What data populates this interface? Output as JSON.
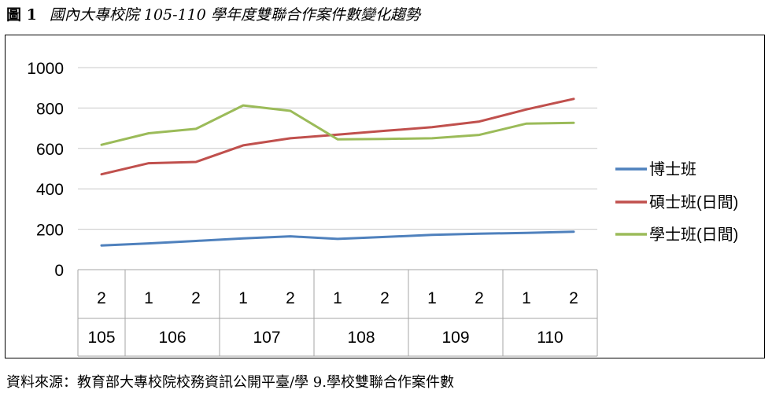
{
  "figure": {
    "number": "圖 1",
    "title": "國內大專校院 105-110 學年度雙聯合作案件數變化趨勢"
  },
  "source": "資料來源：教育部大專校院校務資訊公開平臺/學 9.學校雙聯合作案件數",
  "chart_data": {
    "type": "line",
    "title": "",
    "xlabel": "",
    "ylabel": "",
    "ylim": [
      0,
      1000
    ],
    "yticks": [
      "0",
      "200",
      "400",
      "600",
      "800",
      "1000"
    ],
    "grid": true,
    "legend_position": "right",
    "categories": [
      "2",
      "1",
      "2",
      "1",
      "2",
      "1",
      "2",
      "1",
      "2",
      "1",
      "2"
    ],
    "groups": [
      {
        "label": "105",
        "span": 1
      },
      {
        "label": "106",
        "span": 2
      },
      {
        "label": "107",
        "span": 2
      },
      {
        "label": "108",
        "span": 2
      },
      {
        "label": "109",
        "span": 2
      },
      {
        "label": "110",
        "span": 2
      }
    ],
    "series": [
      {
        "name": "博士班",
        "color": "#4f81bd",
        "values": [
          120,
          130,
          142,
          155,
          165,
          152,
          162,
          172,
          178,
          182,
          188
        ]
      },
      {
        "name": "碩士班(日間)",
        "color": "#c0504d",
        "values": [
          472,
          527,
          533,
          615,
          650,
          668,
          687,
          705,
          733,
          793,
          845
        ]
      },
      {
        "name": "學士班(日間)",
        "color": "#9bbb59",
        "values": [
          618,
          675,
          697,
          813,
          786,
          645,
          647,
          650,
          667,
          723,
          727
        ]
      }
    ]
  }
}
